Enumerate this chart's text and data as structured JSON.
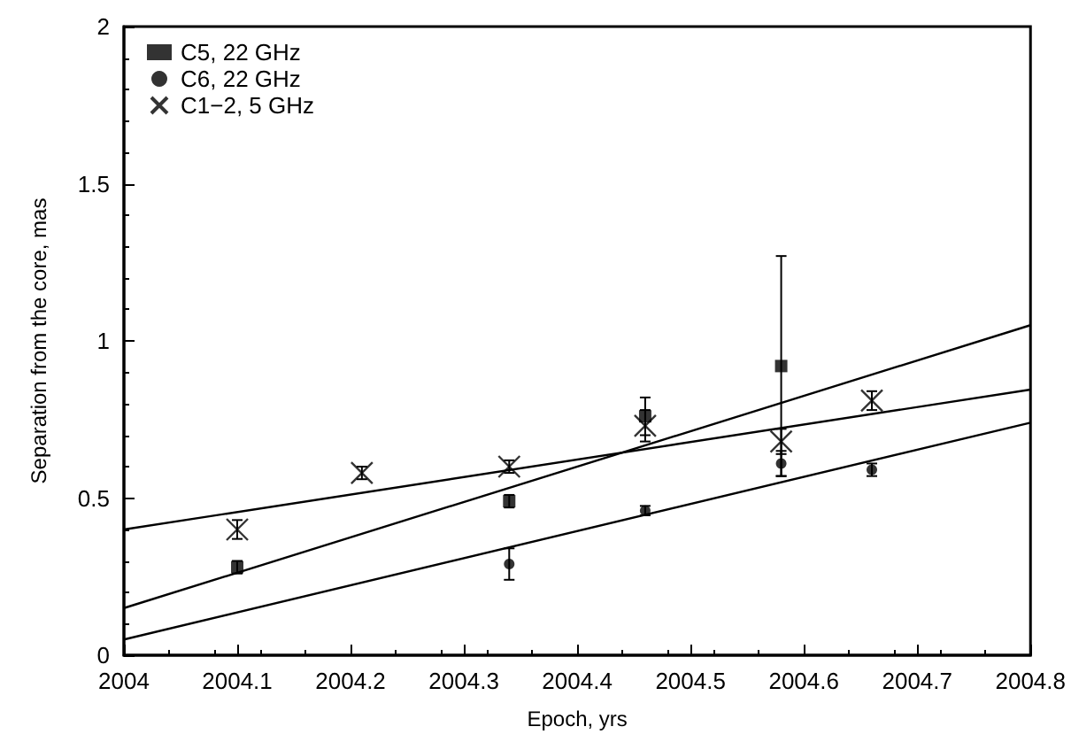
{
  "chart_data": {
    "type": "scatter",
    "xlabel": "Epoch, yrs",
    "ylabel": "Separation from the core, mas",
    "xlim": [
      2004,
      2004.8
    ],
    "xticks": [
      2004,
      2004.1,
      2004.2,
      2004.3,
      2004.4,
      2004.5,
      2004.6,
      2004.7,
      2004.8
    ],
    "ylim": [
      0,
      2
    ],
    "yticks": [
      0,
      0.5,
      1,
      1.5,
      2
    ],
    "grid": false,
    "legend": "top left",
    "series": [
      {
        "name": "C5, 22 GHz",
        "color": "#000000",
        "marker": "square",
        "x": [
          2004.1,
          2004.34,
          2004.46,
          2004.58
        ],
        "values": [
          0.28,
          0.49,
          0.76,
          0.92
        ],
        "errors": [
          0.02,
          0.02,
          0.06,
          0.35
        ]
      },
      {
        "name": "C6, 22 GHz",
        "color": "#000000",
        "marker": "circle",
        "x": [
          2004.34,
          2004.46,
          2004.58,
          2004.66
        ],
        "values": [
          0.29,
          0.46,
          0.61,
          0.59
        ],
        "errors": [
          0.05,
          0.015,
          0.04,
          0.02
        ]
      },
      {
        "name": "C1−2, 5 GHz",
        "color": "#000000",
        "marker": "cross",
        "x": [
          2004.1,
          2004.21,
          2004.34,
          2004.46,
          2004.58,
          2004.66
        ],
        "values": [
          0.4,
          0.58,
          0.6,
          0.73,
          0.68,
          0.81
        ],
        "errors": [
          0.03,
          0.02,
          0.02,
          0.05,
          0.04,
          0.03
        ]
      },
      {
        "type": "line",
        "color": "#000000",
        "marker": "none",
        "x": [
          2004,
          2004.8
        ],
        "values": [
          0.15,
          1.05
        ]
      },
      {
        "type": "line",
        "color": "#000000",
        "marker": "none",
        "x": [
          2004,
          2004.8
        ],
        "values": [
          0.05,
          0.74
        ]
      },
      {
        "type": "line",
        "color": "#000000",
        "marker": "none",
        "x": [
          2004,
          2004.8
        ],
        "values": [
          0.4,
          0.845
        ]
      }
    ]
  }
}
